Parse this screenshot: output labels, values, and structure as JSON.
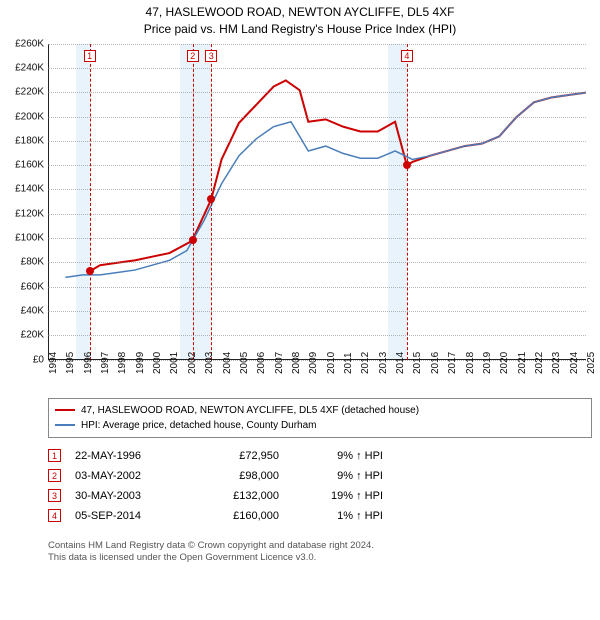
{
  "title": {
    "line1": "47, HASLEWOOD ROAD, NEWTON AYCLIFFE, DL5 4XF",
    "line2": "Price paid vs. HM Land Registry's House Price Index (HPI)"
  },
  "chart": {
    "type": "line",
    "background_color": "#ffffff",
    "grid_color": "#888888",
    "axis_color": "#222222",
    "label_fontsize": 10,
    "x": {
      "min": 1994,
      "max": 2025,
      "step": 1
    },
    "y": {
      "min": 0,
      "max": 260000,
      "step": 20000,
      "prefix": "£",
      "suffix": "K",
      "divisor": 1000
    },
    "bands": [
      {
        "from": 1995.6,
        "to": 1996.4,
        "color": "#bcdcf7"
      },
      {
        "from": 2001.6,
        "to": 2003.4,
        "color": "#bcdcf7"
      },
      {
        "from": 2013.6,
        "to": 2014.7,
        "color": "#bcdcf7"
      }
    ],
    "vlines_color": "#cc0000",
    "marker_box_border": "#cc0000",
    "marker_box_text": "#cc0000",
    "sale_dot_color": "#cc0000",
    "series": [
      {
        "name": "47, HASLEWOOD ROAD, NEWTON AYCLIFFE, DL5 4XF (detached house)",
        "color": "#cc0000",
        "width": 2,
        "points": [
          [
            1996.4,
            72950
          ],
          [
            1997,
            78000
          ],
          [
            1998,
            80000
          ],
          [
            1999,
            82000
          ],
          [
            2000,
            85000
          ],
          [
            2001,
            88000
          ],
          [
            2002.3,
            98000
          ],
          [
            2003.4,
            132000
          ],
          [
            2004,
            165000
          ],
          [
            2005,
            195000
          ],
          [
            2006,
            210000
          ],
          [
            2007,
            225000
          ],
          [
            2007.7,
            230000
          ],
          [
            2008.5,
            222000
          ],
          [
            2009,
            196000
          ],
          [
            2010,
            198000
          ],
          [
            2011,
            192000
          ],
          [
            2012,
            188000
          ],
          [
            2013,
            188000
          ],
          [
            2014,
            196000
          ],
          [
            2014.68,
            160000
          ],
          [
            2015,
            163000
          ],
          [
            2016,
            168000
          ],
          [
            2017,
            172000
          ],
          [
            2018,
            176000
          ],
          [
            2019,
            178000
          ],
          [
            2020,
            184000
          ],
          [
            2021,
            200000
          ],
          [
            2022,
            212000
          ],
          [
            2023,
            216000
          ],
          [
            2024,
            218000
          ],
          [
            2025,
            220000
          ]
        ]
      },
      {
        "name": "HPI: Average price, detached house, County Durham",
        "color": "#4a7ebb",
        "width": 1.5,
        "points": [
          [
            1995,
            68000
          ],
          [
            1996,
            70000
          ],
          [
            1997,
            70000
          ],
          [
            1998,
            72000
          ],
          [
            1999,
            74000
          ],
          [
            2000,
            78000
          ],
          [
            2001,
            82000
          ],
          [
            2002,
            90000
          ],
          [
            2003,
            115000
          ],
          [
            2004,
            145000
          ],
          [
            2005,
            168000
          ],
          [
            2006,
            182000
          ],
          [
            2007,
            192000
          ],
          [
            2008,
            196000
          ],
          [
            2009,
            172000
          ],
          [
            2010,
            176000
          ],
          [
            2011,
            170000
          ],
          [
            2012,
            166000
          ],
          [
            2013,
            166000
          ],
          [
            2014,
            172000
          ],
          [
            2015,
            165000
          ],
          [
            2016,
            168000
          ],
          [
            2017,
            172000
          ],
          [
            2018,
            176000
          ],
          [
            2019,
            178000
          ],
          [
            2020,
            184000
          ],
          [
            2021,
            200000
          ],
          [
            2022,
            212000
          ],
          [
            2023,
            216000
          ],
          [
            2024,
            218000
          ],
          [
            2025,
            220000
          ]
        ]
      }
    ],
    "sale_markers": [
      {
        "idx": "1",
        "x": 1996.4,
        "y": 72950
      },
      {
        "idx": "2",
        "x": 2002.34,
        "y": 98000
      },
      {
        "idx": "3",
        "x": 2003.41,
        "y": 132000
      },
      {
        "idx": "4",
        "x": 2014.68,
        "y": 160000
      }
    ]
  },
  "legend": {
    "items": [
      {
        "color": "#cc0000",
        "label": "47, HASLEWOOD ROAD, NEWTON AYCLIFFE, DL5 4XF (detached house)"
      },
      {
        "color": "#4a7ebb",
        "label": "HPI: Average price, detached house, County Durham"
      }
    ]
  },
  "sales": [
    {
      "idx": "1",
      "date": "22-MAY-1996",
      "price": "£72,950",
      "delta": "9% ↑ HPI"
    },
    {
      "idx": "2",
      "date": "03-MAY-2002",
      "price": "£98,000",
      "delta": "9% ↑ HPI"
    },
    {
      "idx": "3",
      "date": "30-MAY-2003",
      "price": "£132,000",
      "delta": "19% ↑ HPI"
    },
    {
      "idx": "4",
      "date": "05-SEP-2014",
      "price": "£160,000",
      "delta": "1% ↑ HPI"
    }
  ],
  "footer": {
    "line1": "Contains HM Land Registry data © Crown copyright and database right 2024.",
    "line2": "This data is licensed under the Open Government Licence v3.0."
  }
}
